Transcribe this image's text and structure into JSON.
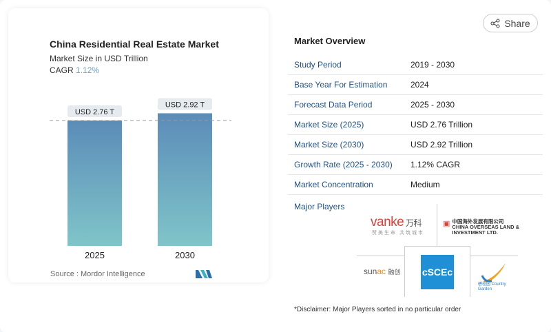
{
  "share": {
    "label": "Share",
    "icon": "share-icon"
  },
  "chart_card": {
    "title": "China Residential Real Estate Market",
    "subtitle": "Market Size in USD Trillion",
    "cagr_label": "CAGR",
    "cagr_value": "1.12%",
    "source": "Source :  Mordor Intelligence",
    "logo_text": "Mordor Intelligence"
  },
  "chart_data": {
    "type": "bar",
    "categories": [
      "2025",
      "2030"
    ],
    "values": [
      2.76,
      2.92
    ],
    "data_labels": [
      "USD 2.76 T",
      "USD 2.92 T"
    ],
    "title": "China Residential Real Estate Market",
    "ylabel": "Market Size in USD Trillion",
    "reference_line": 2.76,
    "colors": {
      "top": "#5b8cb8",
      "bottom": "#80c5c9"
    }
  },
  "overview": {
    "title": "Market Overview",
    "rows": [
      {
        "key": "Study Period",
        "value": "2019 - 2030"
      },
      {
        "key": "Base Year For Estimation",
        "value": "2024"
      },
      {
        "key": "Forecast Data Period",
        "value": "2025 - 2030"
      },
      {
        "key": "Market Size (2025)",
        "value": "USD 2.76 Trillion"
      },
      {
        "key": "Market Size (2030)",
        "value": "USD 2.92 Trillion"
      },
      {
        "key": "Growth Rate (2025 - 2030)",
        "value": "1.12% CAGR"
      },
      {
        "key": "Market Concentration",
        "value": "Medium"
      }
    ],
    "major_players_label": "Major Players",
    "players": [
      "vanke 万科",
      "中国海外发展有限公司 CHINA OVERSEAS LAND & INVESTMENT LTD.",
      "sunac 融创",
      "CSCEC",
      "碧桂园 Country Garden"
    ],
    "disclaimer": "*Disclaimer: Major Players sorted in no particular order"
  }
}
